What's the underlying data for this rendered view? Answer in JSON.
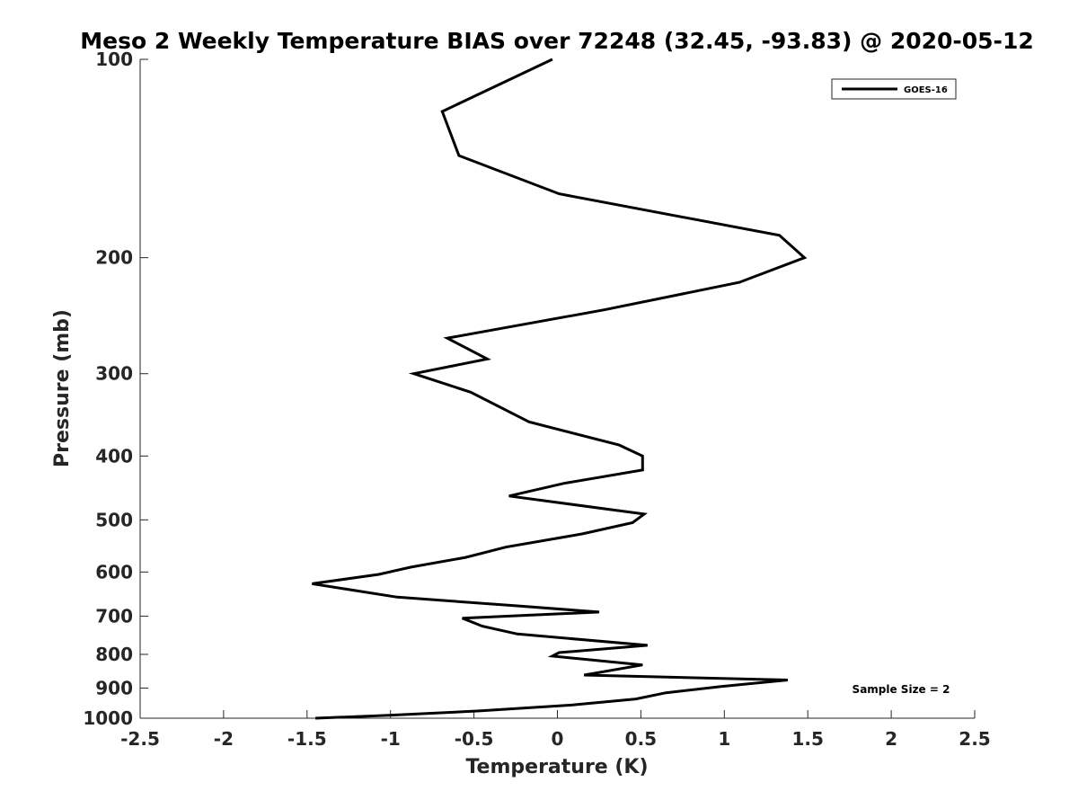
{
  "chart_data": {
    "type": "line",
    "title": "Meso 2 Weekly Temperature BIAS over 72248 (32.45, -93.83) @ 2020-05-12",
    "xlabel": "Temperature (K)",
    "ylabel": "Pressure (mb)",
    "xlim": [
      -2.5,
      2.5
    ],
    "ylim": [
      1000,
      100
    ],
    "yscale": "log",
    "y_reversed": true,
    "x_ticks": [
      -2.5,
      -2,
      -1.5,
      -1,
      -0.5,
      0,
      0.5,
      1,
      1.5,
      2,
      2.5
    ],
    "x_tick_labels": [
      "-2.5",
      "-2",
      "-1.5",
      "-1",
      "-0.5",
      "0",
      "0.5",
      "1",
      "1.5",
      "2",
      "2.5"
    ],
    "y_ticks": [
      100,
      200,
      300,
      400,
      500,
      600,
      700,
      800,
      900,
      1000
    ],
    "y_tick_labels": [
      "100",
      "200",
      "300",
      "400",
      "500",
      "600",
      "700",
      "800",
      "900",
      "1000"
    ],
    "grid": false,
    "legend_position": "top-right",
    "series": [
      {
        "name": "GOES-16",
        "color": "#000000",
        "x": [
          -0.03,
          -0.69,
          -0.59,
          0.01,
          1.33,
          1.48,
          1.09,
          0.28,
          -0.66,
          -0.42,
          -0.86,
          -0.52,
          -0.17,
          0.37,
          0.51,
          0.51,
          0.04,
          -0.29,
          0.52,
          0.45,
          0.15,
          -0.31,
          -0.55,
          -0.88,
          -1.07,
          -1.47,
          -0.96,
          -0.25,
          0.25,
          -0.57,
          -0.45,
          -0.24,
          0.54,
          0.01,
          -0.03,
          0.51,
          0.16,
          1.38,
          0.98,
          0.65,
          0.47,
          0.09,
          -0.47,
          -1.01,
          -1.45
        ],
        "y": [
          100,
          120,
          140,
          160,
          185,
          200,
          218,
          240,
          265,
          285,
          300,
          320,
          355,
          385,
          400,
          420,
          440,
          460,
          490,
          505,
          525,
          550,
          570,
          590,
          605,
          625,
          655,
          675,
          690,
          705,
          725,
          745,
          775,
          795,
          805,
          830,
          860,
          875,
          895,
          915,
          935,
          955,
          975,
          990,
          1000
        ]
      }
    ],
    "annotations": [
      "Sample Size = 2"
    ]
  }
}
